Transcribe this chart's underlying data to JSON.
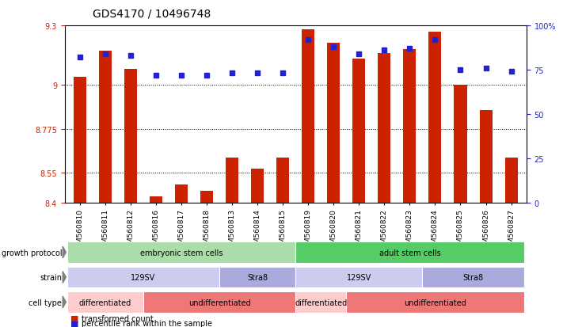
{
  "title": "GDS4170 / 10496748",
  "samples": [
    "GSM560810",
    "GSM560811",
    "GSM560812",
    "GSM560816",
    "GSM560817",
    "GSM560818",
    "GSM560813",
    "GSM560814",
    "GSM560815",
    "GSM560819",
    "GSM560820",
    "GSM560821",
    "GSM560822",
    "GSM560823",
    "GSM560824",
    "GSM560825",
    "GSM560826",
    "GSM560827"
  ],
  "transformed_count": [
    9.04,
    9.17,
    9.08,
    8.43,
    8.49,
    8.46,
    8.63,
    8.57,
    8.63,
    9.28,
    9.21,
    9.13,
    9.16,
    9.18,
    9.27,
    9.0,
    8.87,
    8.63
  ],
  "percentile_rank": [
    82,
    84,
    83,
    72,
    72,
    72,
    73,
    73,
    73,
    92,
    88,
    84,
    86,
    87,
    92,
    75,
    76,
    74
  ],
  "ylim_left": [
    8.4,
    9.3
  ],
  "ylim_right": [
    0,
    100
  ],
  "yticks_left": [
    8.4,
    8.55,
    8.775,
    9.0,
    9.3
  ],
  "ytick_labels_left": [
    "8.4",
    "8.55",
    "8.775",
    "9",
    "9.3"
  ],
  "yticks_right": [
    0,
    25,
    50,
    75,
    100
  ],
  "ytick_labels_right": [
    "0",
    "25",
    "50",
    "75",
    "100%"
  ],
  "hlines": [
    9.0,
    8.775,
    8.55
  ],
  "bar_color": "#cc2200",
  "dot_color": "#2222cc",
  "cell_type_groups": [
    {
      "label": "embryonic stem cells",
      "start": 0,
      "end": 8,
      "color": "#aaddaa"
    },
    {
      "label": "adult stem cells",
      "start": 9,
      "end": 17,
      "color": "#55cc66"
    }
  ],
  "strain_groups": [
    {
      "label": "129SV",
      "start": 0,
      "end": 5,
      "color": "#ccccee"
    },
    {
      "label": "Stra8",
      "start": 6,
      "end": 8,
      "color": "#aaaadd"
    },
    {
      "label": "129SV",
      "start": 9,
      "end": 13,
      "color": "#ccccee"
    },
    {
      "label": "Stra8",
      "start": 14,
      "end": 17,
      "color": "#aaaadd"
    }
  ],
  "protocol_groups": [
    {
      "label": "differentiated",
      "start": 0,
      "end": 2,
      "color": "#ffcccc"
    },
    {
      "label": "undifferentiated",
      "start": 3,
      "end": 8,
      "color": "#ee7777"
    },
    {
      "label": "differentiated",
      "start": 9,
      "end": 10,
      "color": "#ffcccc"
    },
    {
      "label": "undifferentiated",
      "start": 11,
      "end": 17,
      "color": "#ee7777"
    }
  ],
  "row_label_names": [
    "cell type",
    "strain",
    "growth protocol"
  ],
  "legend_items": [
    {
      "label": "transformed count",
      "color": "#cc2200"
    },
    {
      "label": "percentile rank within the sample",
      "color": "#2222cc"
    }
  ],
  "bg_color": "#ffffff",
  "title_fontsize": 10,
  "tick_fontsize": 7,
  "label_fontsize": 7
}
